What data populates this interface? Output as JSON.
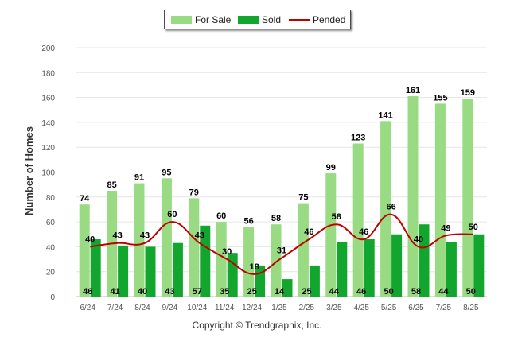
{
  "legend": {
    "for_sale": "For Sale",
    "sold": "Sold",
    "pended": "Pended"
  },
  "footer": {
    "copyright": "Copyright © Trendgraphix, Inc."
  },
  "colors": {
    "for_sale": "#98db82",
    "sold": "#12a62e",
    "pended": "#c00000",
    "grid": "#e6e6e6",
    "axis_text": "#555555"
  },
  "chart_data": {
    "type": "bar",
    "title": "",
    "xlabel": "",
    "ylabel": "Number of Homes",
    "ylim": [
      0,
      200
    ],
    "yticks": [
      0,
      20,
      40,
      60,
      80,
      100,
      120,
      140,
      160,
      180,
      200
    ],
    "grid": true,
    "legend_position": "top-center",
    "categories": [
      "6/24",
      "7/24",
      "8/24",
      "9/24",
      "10/24",
      "11/24",
      "12/24",
      "1/25",
      "2/25",
      "3/25",
      "4/25",
      "5/25",
      "6/25",
      "7/25",
      "8/25"
    ],
    "series": [
      {
        "name": "For Sale",
        "type": "bar",
        "values": [
          74,
          85,
          91,
          95,
          79,
          60,
          56,
          58,
          75,
          99,
          123,
          141,
          161,
          155,
          159
        ]
      },
      {
        "name": "Sold",
        "type": "bar",
        "values": [
          46,
          41,
          40,
          43,
          57,
          35,
          25,
          14,
          25,
          44,
          46,
          50,
          58,
          44,
          50
        ]
      },
      {
        "name": "Pended",
        "type": "line",
        "values": [
          40,
          43,
          43,
          60,
          43,
          30,
          18,
          31,
          46,
          58,
          46,
          66,
          40,
          49,
          50
        ]
      }
    ]
  }
}
